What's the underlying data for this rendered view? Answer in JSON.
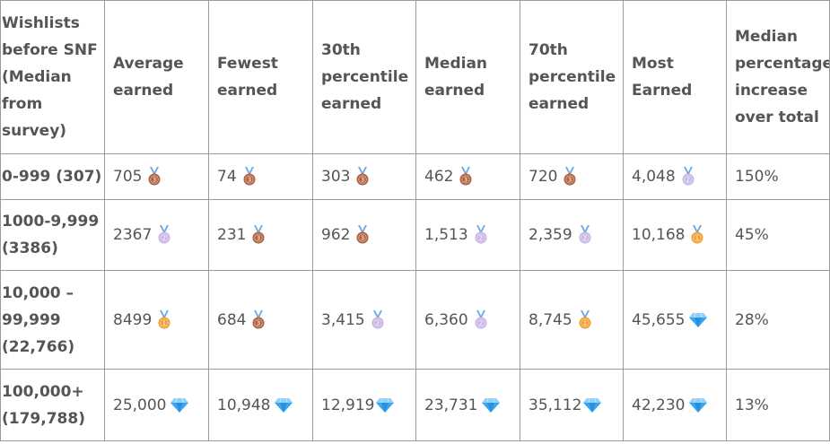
{
  "headers": [
    "Wishlists before SNF (Median from survey)",
    "Average earned",
    "Fewest earned",
    "30th percentile earned",
    "Median earned",
    "70th percentile earned",
    "Most Earned",
    "Median percentage increase over total"
  ],
  "rows": [
    {
      "label": "0-999 (307)",
      "cells": [
        {
          "value": "705",
          "badge": "bronze-medal"
        },
        {
          "value": "74",
          "badge": "bronze-medal"
        },
        {
          "value": "303",
          "badge": "bronze-medal"
        },
        {
          "value": "462",
          "badge": "bronze-medal"
        },
        {
          "value": "720",
          "badge": "bronze-medal"
        },
        {
          "value": "4,048",
          "badge": "silver-medal"
        }
      ],
      "pct": "150%"
    },
    {
      "label": "1000-9,999 (3386)",
      "cells": [
        {
          "value": "2367",
          "badge": "silver-medal"
        },
        {
          "value": "231",
          "badge": "bronze-medal"
        },
        {
          "value": "962",
          "badge": "bronze-medal"
        },
        {
          "value": "1,513",
          "badge": "silver-medal"
        },
        {
          "value": "2,359",
          "badge": "silver-medal"
        },
        {
          "value": "10,168",
          "badge": "gold-medal"
        }
      ],
      "pct": "45%"
    },
    {
      "label": "10,000 – 99,999 (22,766)",
      "cells": [
        {
          "value": "8499",
          "badge": "gold-medal"
        },
        {
          "value": "684",
          "badge": "bronze-medal"
        },
        {
          "value": "3,415",
          "badge": "silver-medal"
        },
        {
          "value": "6,360",
          "badge": "silver-medal"
        },
        {
          "value": "8,745",
          "badge": "gold-medal"
        },
        {
          "value": "45,655",
          "badge": "diamond"
        }
      ],
      "pct": "28%"
    },
    {
      "label": "100,000+ (179,788)",
      "cells": [
        {
          "value": "25,000",
          "badge": "diamond"
        },
        {
          "value": "10,948",
          "badge": "diamond"
        },
        {
          "value": "12,919",
          "badge": "diamond"
        },
        {
          "value": "23,731",
          "badge": "diamond"
        },
        {
          "value": "35,112",
          "badge": "diamond"
        },
        {
          "value": "42,230",
          "badge": "diamond"
        }
      ],
      "pct": "13%"
    }
  ],
  "colors": {
    "bronze": "#b0603a",
    "silver": "#c9b6e4",
    "gold": "#f0a030",
    "ribbon": "#6aa6e0",
    "diamond": "#3aa6f0"
  }
}
